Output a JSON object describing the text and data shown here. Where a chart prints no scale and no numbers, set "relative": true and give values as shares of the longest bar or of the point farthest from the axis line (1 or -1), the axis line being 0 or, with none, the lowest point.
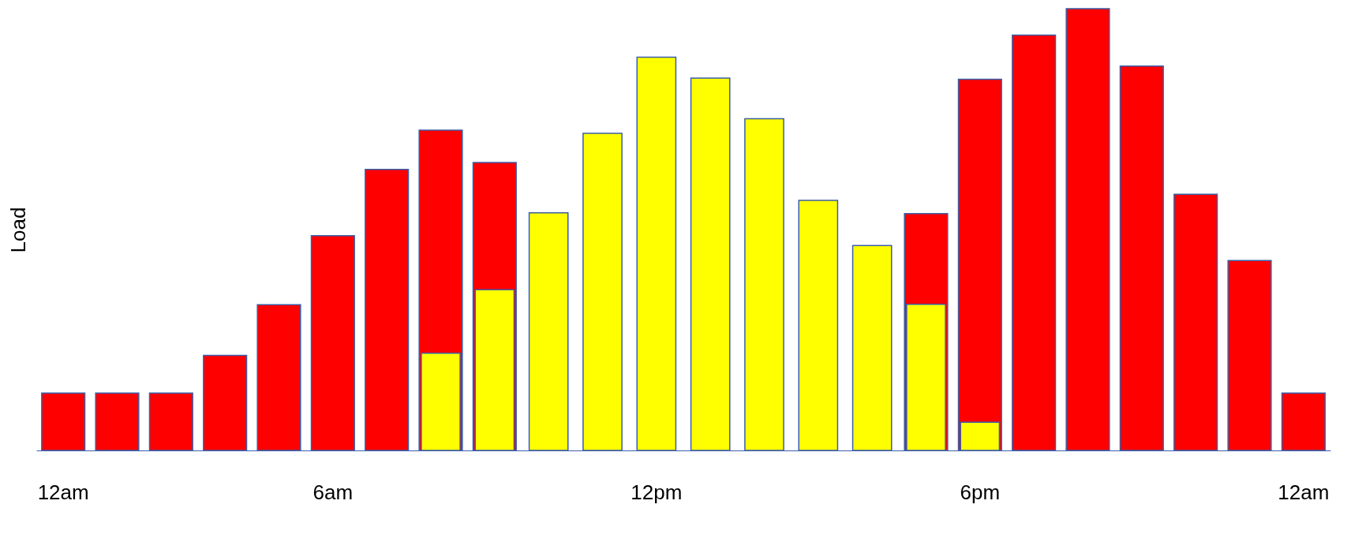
{
  "chart_data": {
    "type": "bar",
    "ylabel": "Load",
    "relative": true,
    "categories": [
      "12am",
      null,
      null,
      null,
      null,
      "6am",
      null,
      null,
      null,
      null,
      null,
      "12pm",
      null,
      null,
      null,
      null,
      null,
      "6pm",
      null,
      null,
      null,
      null,
      null,
      "12am"
    ],
    "series": [
      {
        "color": "#ff0000",
        "values": [
          0.13,
          0.13,
          0.13,
          0.215,
          0.33,
          0.486,
          0.636,
          0.725,
          0.652,
          null,
          null,
          null,
          null,
          null,
          null,
          null,
          0.536,
          0.84,
          0.94,
          1,
          0.87,
          0.58,
          0.43,
          0.13
        ]
      },
      {
        "color": "#ffff00",
        "values": [
          null,
          null,
          null,
          null,
          null,
          null,
          null,
          0.22,
          0.364,
          0.538,
          0.718,
          0.89,
          0.843,
          0.751,
          0.566,
          0.464,
          0.331,
          0.064,
          null,
          null,
          null,
          null,
          null,
          null
        ]
      }
    ]
  }
}
